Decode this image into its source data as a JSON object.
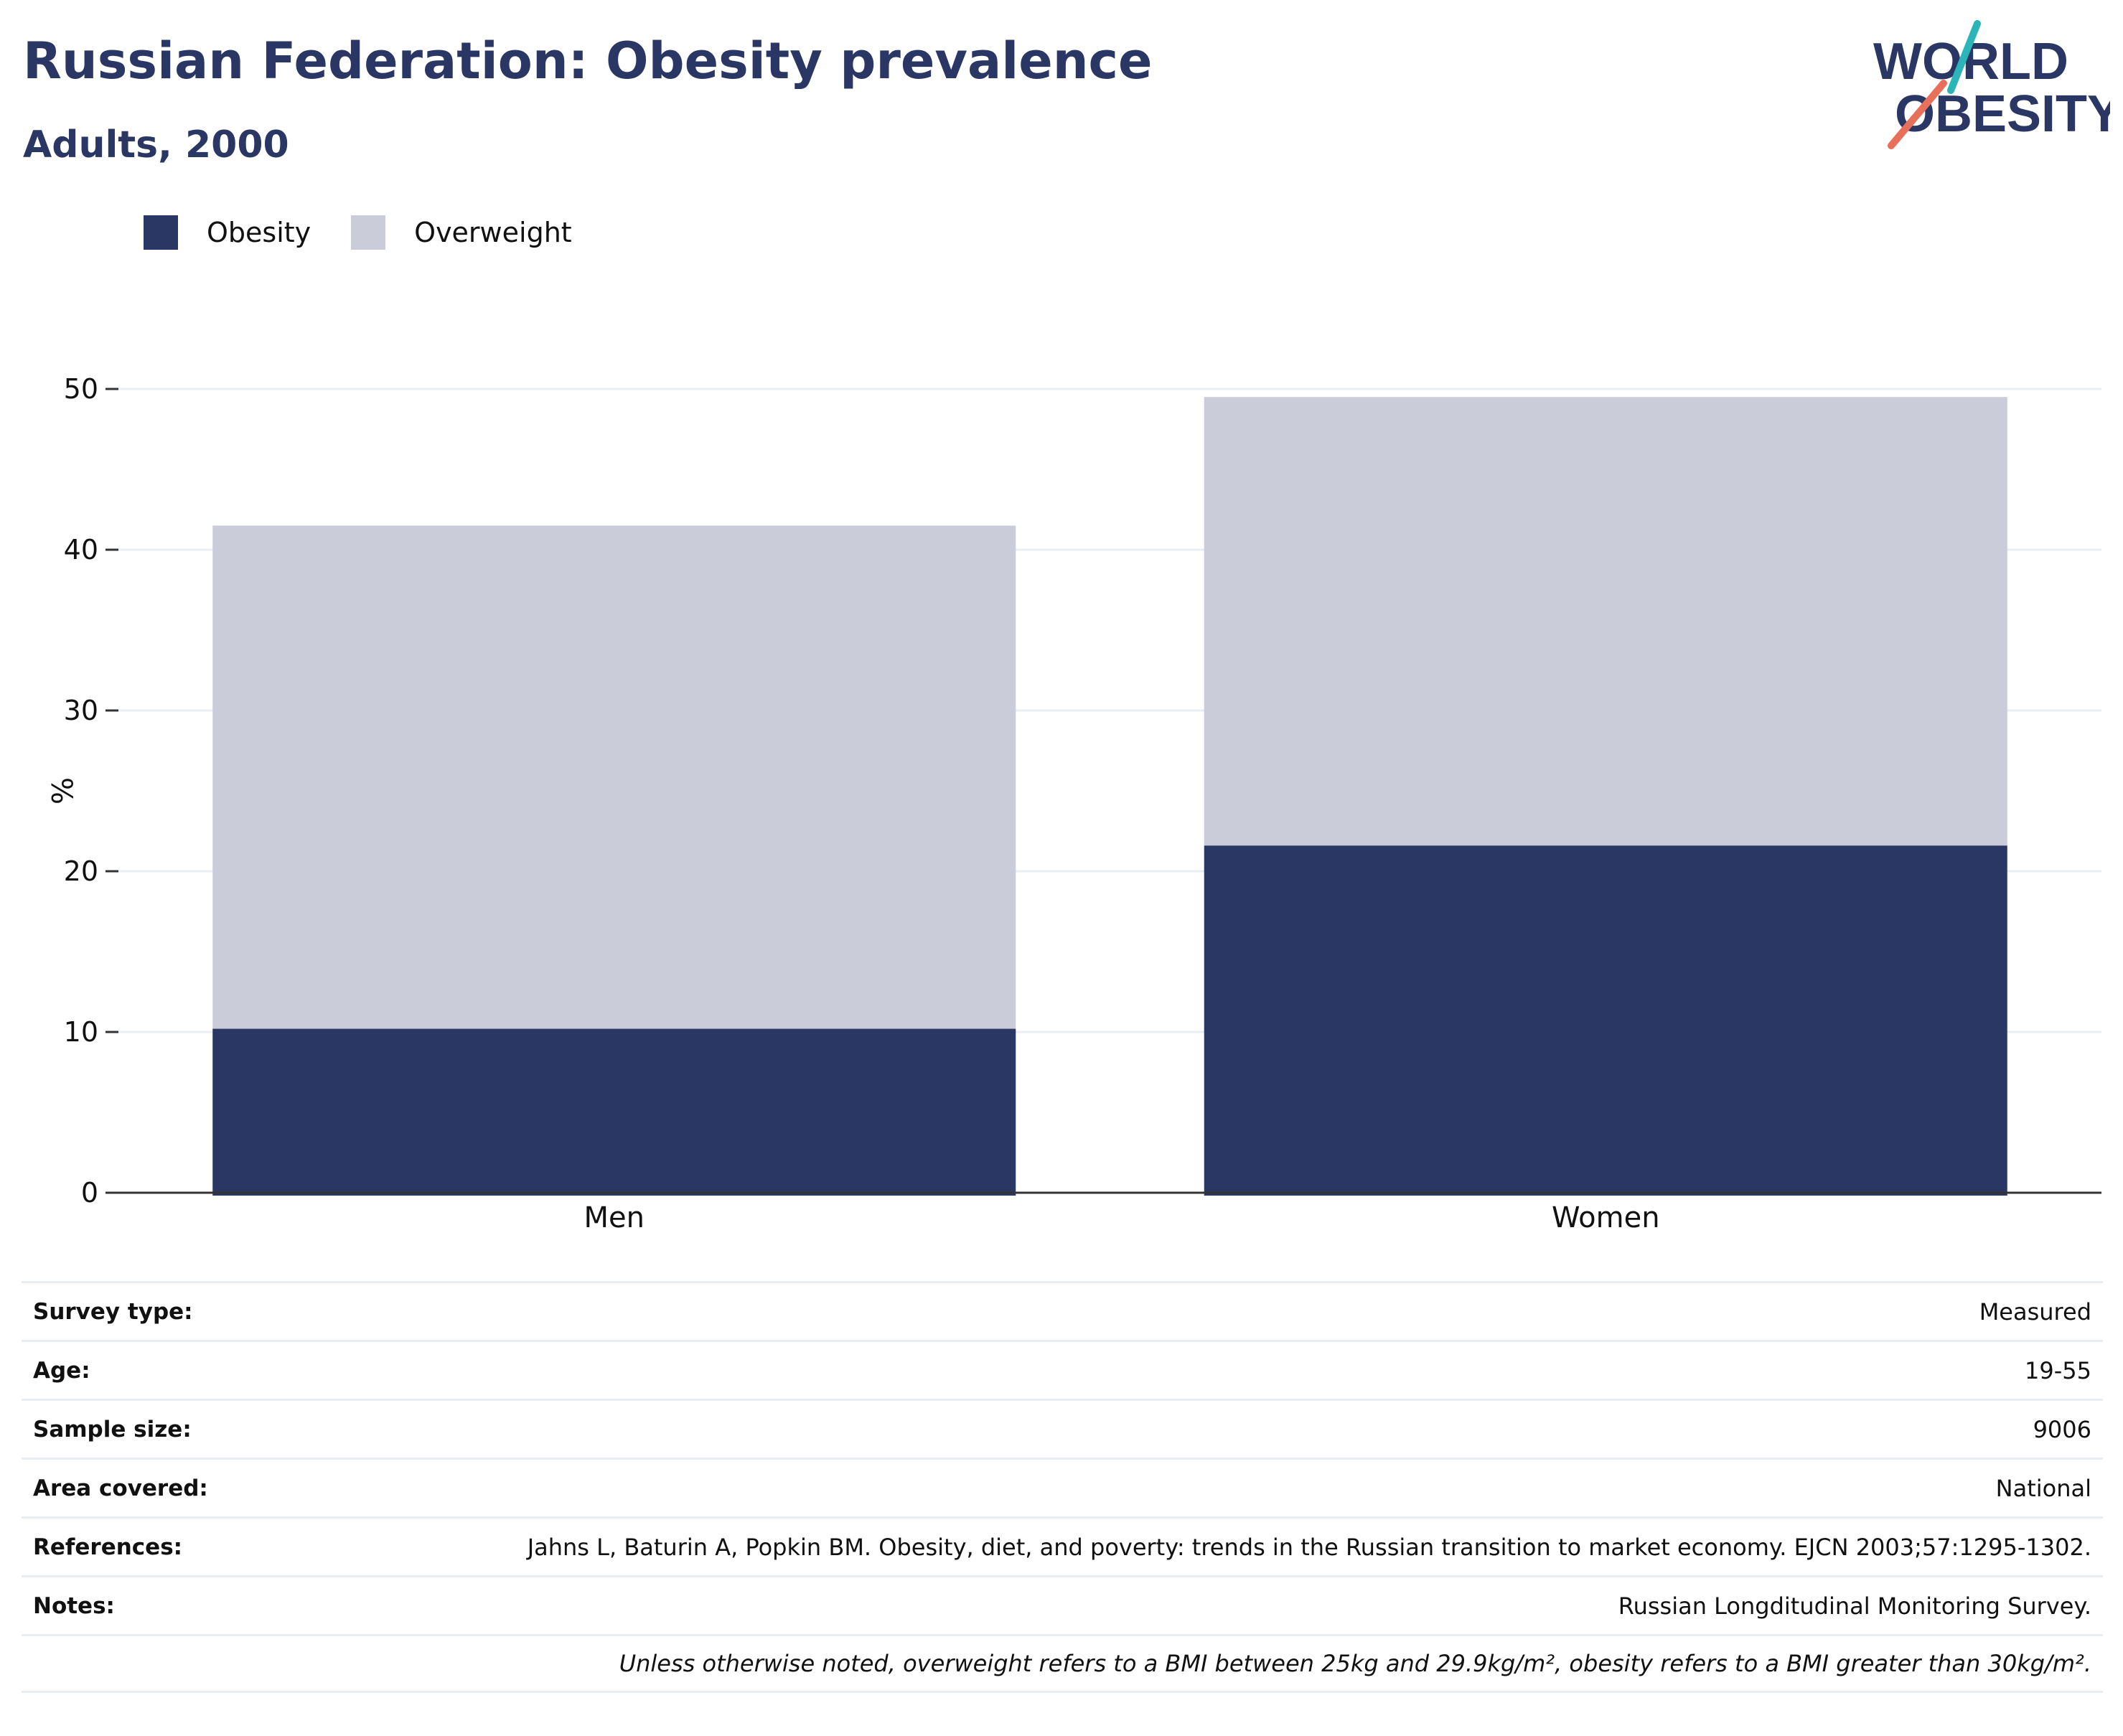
{
  "header": {
    "title": "Russian Federation: Obesity prevalence",
    "subtitle": "Adults, 2000"
  },
  "logo": {
    "line1": "WORLD",
    "line2": "OBESITY",
    "colors": {
      "text": "#2a3663",
      "teal": "#2bb5b8",
      "coral": "#e8705a"
    }
  },
  "legend": [
    {
      "label": "Obesity",
      "color": "#2a3663"
    },
    {
      "label": "Overweight",
      "color": "#cacdd9"
    }
  ],
  "chart_data": {
    "type": "bar",
    "stacked": true,
    "categories": [
      "Men",
      "Women"
    ],
    "series": [
      {
        "name": "Obesity",
        "color": "#2a3663",
        "values": [
          10.2,
          21.6
        ]
      },
      {
        "name": "Overweight",
        "color": "#cacdd9",
        "values": [
          31.3,
          27.9
        ]
      }
    ],
    "ylabel": "%",
    "ylim": [
      0,
      50
    ],
    "yticks": [
      0,
      10,
      20,
      30,
      40,
      50
    ],
    "grid": true
  },
  "info": [
    {
      "label": "Survey type:",
      "value": "Measured"
    },
    {
      "label": "Age:",
      "value": "19-55"
    },
    {
      "label": "Sample size:",
      "value": "9006"
    },
    {
      "label": "Area covered:",
      "value": "National"
    },
    {
      "label": "References:",
      "value": "Jahns L, Baturin A, Popkin BM. Obesity, diet, and poverty: trends in the Russian transition to market economy. EJCN 2003;57:1295-1302."
    },
    {
      "label": "Notes:",
      "value": "Russian Longditudinal Monitoring Survey."
    }
  ],
  "footnote": "Unless otherwise noted, overweight refers to a BMI between 25kg and 29.9kg/m², obesity refers to a BMI greater than 30kg/m²."
}
